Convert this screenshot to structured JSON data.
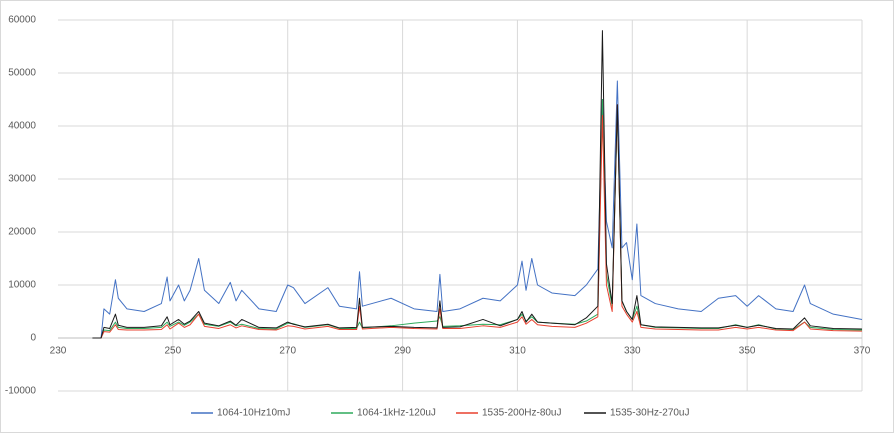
{
  "chart_data": {
    "type": "line",
    "x": [
      236,
      237.5,
      238,
      239,
      240,
      240.5,
      242,
      245,
      248,
      249,
      249.5,
      251,
      252,
      253,
      254.5,
      255.5,
      258,
      260,
      261,
      262,
      265,
      268,
      270,
      271,
      273,
      277,
      279,
      282,
      282.5,
      283,
      288,
      292,
      296,
      296.5,
      297,
      300,
      304,
      307,
      310,
      310.8,
      311.5,
      312.5,
      313.5,
      316,
      320,
      322,
      324,
      324.8,
      325.5,
      326.5,
      327.4,
      328.2,
      329,
      330,
      330.8,
      331.5,
      334,
      338,
      342,
      345,
      348,
      350,
      352,
      355,
      358,
      360,
      361,
      365,
      370
    ],
    "series": [
      {
        "name": "1064-10Hz10mJ",
        "color": "#4472c4",
        "values": [
          0,
          0,
          5500,
          4500,
          11000,
          7500,
          5500,
          5000,
          6500,
          11500,
          7000,
          10000,
          7000,
          9000,
          15000,
          9000,
          6500,
          10500,
          7000,
          9000,
          5500,
          5000,
          10000,
          9500,
          6500,
          9500,
          6000,
          5500,
          12500,
          6000,
          7500,
          5500,
          5000,
          12000,
          5000,
          5500,
          7500,
          7000,
          10000,
          14500,
          9000,
          15000,
          10000,
          8500,
          8000,
          10000,
          13000,
          45000,
          22000,
          17000,
          48500,
          17000,
          18000,
          11000,
          21500,
          8000,
          6500,
          5500,
          5000,
          7500,
          8000,
          6000,
          8000,
          5500,
          5000,
          10000,
          6500,
          4500,
          3500
        ]
      },
      {
        "name": "1064-1kHz-120uJ",
        "color": "#2eaa5c",
        "values": [
          0,
          0,
          1500,
          1400,
          3000,
          2000,
          1800,
          1800,
          2000,
          3000,
          2200,
          3000,
          2400,
          3000,
          4500,
          2600,
          2200,
          3000,
          2300,
          2600,
          1800,
          1700,
          2800,
          2700,
          2000,
          2500,
          1800,
          1800,
          3000,
          1900,
          2300,
          2800,
          3200,
          4000,
          2200,
          2300,
          2600,
          2500,
          3500,
          4500,
          3200,
          4000,
          3000,
          2800,
          2600,
          3200,
          4500,
          45000,
          12000,
          6000,
          43000,
          7000,
          5000,
          3500,
          6000,
          2500,
          2000,
          1900,
          1800,
          1800,
          2500,
          2000,
          2500,
          1700,
          1600,
          3000,
          2000,
          1600,
          1500
        ]
      },
      {
        "name": "1535-200Hz-80uJ",
        "color": "#e8412f",
        "values": [
          0,
          0,
          1200,
          1100,
          2500,
          1600,
          1500,
          1500,
          1600,
          2500,
          1700,
          2800,
          2000,
          2500,
          4500,
          2200,
          1800,
          2500,
          1900,
          2300,
          1600,
          1500,
          2300,
          2200,
          1700,
          2200,
          1600,
          1600,
          6000,
          1700,
          2000,
          1800,
          1700,
          5500,
          1800,
          1800,
          2300,
          2000,
          3000,
          4000,
          2600,
          3500,
          2500,
          2200,
          2000,
          2800,
          4000,
          42000,
          10000,
          5000,
          44000,
          6000,
          4500,
          3000,
          5000,
          2000,
          1700,
          1600,
          1500,
          1500,
          2000,
          1700,
          2000,
          1500,
          1400,
          3000,
          1700,
          1400,
          1300
        ]
      },
      {
        "name": "1535-30Hz-270uJ",
        "color": "#1a1a1a",
        "values": [
          0,
          0,
          2000,
          1800,
          4500,
          2400,
          2000,
          2000,
          2300,
          4000,
          2500,
          3500,
          2600,
          3200,
          5000,
          2800,
          2300,
          3200,
          2400,
          3500,
          2000,
          1900,
          3000,
          2600,
          2100,
          2600,
          1900,
          2000,
          7500,
          2000,
          2200,
          2000,
          1900,
          7000,
          2000,
          2100,
          3500,
          2300,
          3500,
          5000,
          3000,
          4500,
          3000,
          2800,
          2500,
          3800,
          6000,
          58000,
          14000,
          6500,
          44000,
          7000,
          5000,
          3500,
          8000,
          2500,
          2100,
          2000,
          1900,
          1900,
          2400,
          2000,
          2400,
          1800,
          1700,
          3800,
          2300,
          1800,
          1700
        ]
      }
    ],
    "xlim": [
      230,
      370
    ],
    "ylim": [
      -10000,
      60000
    ],
    "xticks": [
      230,
      250,
      270,
      290,
      310,
      330,
      350,
      370
    ],
    "yticks": [
      -10000,
      0,
      10000,
      20000,
      30000,
      40000,
      50000,
      60000
    ],
    "grid": true,
    "legend": "bottom"
  }
}
